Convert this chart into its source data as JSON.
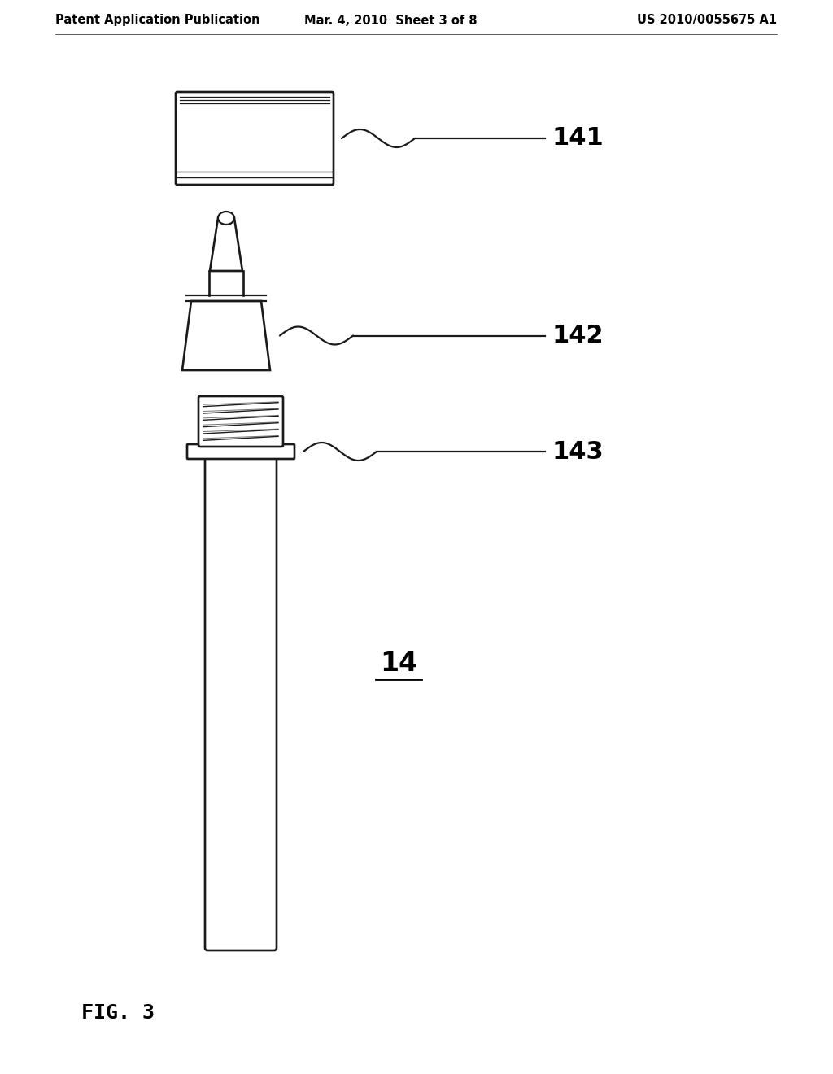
{
  "background_color": "#ffffff",
  "header_left": "Patent Application Publication",
  "header_center": "Mar. 4, 2010  Sheet 3 of 8",
  "header_right": "US 2010/0055675 A1",
  "header_fontsize": 10.5,
  "footer_label": "FIG. 3",
  "footer_fontsize": 18,
  "label_141": "141",
  "label_142": "142",
  "label_143": "143",
  "label_14": "14",
  "label_fontsize": 22,
  "line_color": "#1a1a1a",
  "text_color": "#000000",
  "lw": 1.6
}
